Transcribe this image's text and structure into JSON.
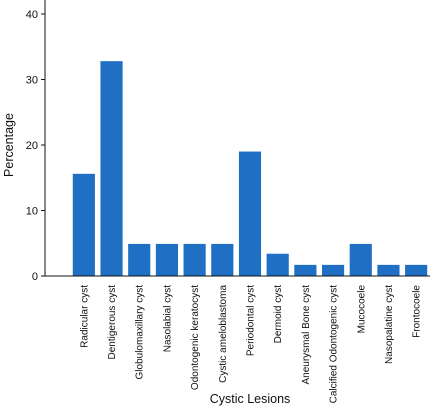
{
  "chart_data": {
    "type": "bar",
    "title": "",
    "xlabel": "Cystic Lesions",
    "ylabel": "Percentage",
    "ylim": [
      0,
      40
    ],
    "yticks": [
      0,
      10,
      20,
      30,
      40
    ],
    "grid": false,
    "bar_color": "#1f6fc4",
    "categories": [
      "Radicular cyst",
      "Dentigerous cyst",
      "Globulomaxillary cyst",
      "Nasolabial cyst",
      "Odontogenic keratocyst",
      "Cystic ameloblastoma",
      "Periodontal cyst",
      "Dermoid cyst",
      "Aneurysmal Bone cyst",
      "Calcified Odontogenic cyst",
      "Mucocoele",
      "Nasopalatine cyst",
      "Frontocoele"
    ],
    "values": [
      15.6,
      32.8,
      4.9,
      4.9,
      4.9,
      4.9,
      19.0,
      3.4,
      1.7,
      1.7,
      4.9,
      1.7,
      1.7
    ]
  }
}
